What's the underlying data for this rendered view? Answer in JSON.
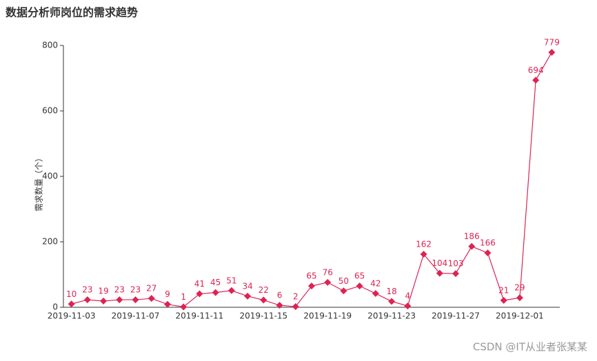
{
  "chart_data": {
    "type": "line",
    "title": "数据分析师岗位的需求趋势",
    "y_label": "需求数量（个）",
    "watermark": "CSDN @IT从业者张某某",
    "categories": [
      "2019-11-03",
      null,
      null,
      null,
      "2019-11-07",
      null,
      null,
      null,
      "2019-11-11",
      null,
      null,
      null,
      "2019-11-15",
      null,
      null,
      null,
      "2019-11-19",
      null,
      null,
      null,
      "2019-11-23",
      null,
      null,
      null,
      "2019-11-27",
      null,
      null,
      null,
      "2019-12-01",
      null,
      null
    ],
    "values": [
      10,
      23,
      19,
      23,
      23,
      27,
      9,
      1,
      41,
      45,
      51,
      34,
      22,
      6,
      2,
      65,
      76,
      50,
      65,
      42,
      18,
      4,
      162,
      104,
      103,
      186,
      166,
      21,
      29,
      694,
      779
    ],
    "color": "#dc2454",
    "ylim": [
      0,
      800
    ],
    "yticks": [
      0,
      200,
      400,
      600,
      800
    ],
    "grid": false
  }
}
